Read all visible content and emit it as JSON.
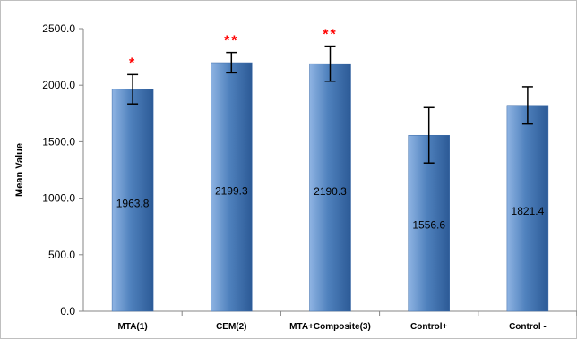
{
  "chart_data": {
    "type": "bar",
    "title": "",
    "xlabel": "",
    "ylabel": "Mean Value",
    "ylim": [
      0,
      2500
    ],
    "yticks": [
      "0.0",
      "500.0",
      "1000.0",
      "1500.0",
      "2000.0",
      "2500.0"
    ],
    "categories": [
      "MTA(1)",
      "CEM(2)",
      "MTA+Composite(3)",
      "Control+",
      "Control -"
    ],
    "values": [
      1963.8,
      2199.3,
      2190.3,
      1556.6,
      1821.4
    ],
    "value_labels": [
      "1963.8",
      "2199.3",
      "2190.3",
      "1556.6",
      "1821.4"
    ],
    "error": [
      130,
      90,
      155,
      245,
      165
    ],
    "significance": [
      "*",
      "**",
      "**",
      "",
      ""
    ],
    "grid": false,
    "legend": "none",
    "colors": {
      "bar_light": "#8fb4e3",
      "bar_mid": "#4f81bd",
      "bar_dark": "#2c5a96",
      "significance": "#ff0000",
      "axis": "#868686"
    }
  }
}
